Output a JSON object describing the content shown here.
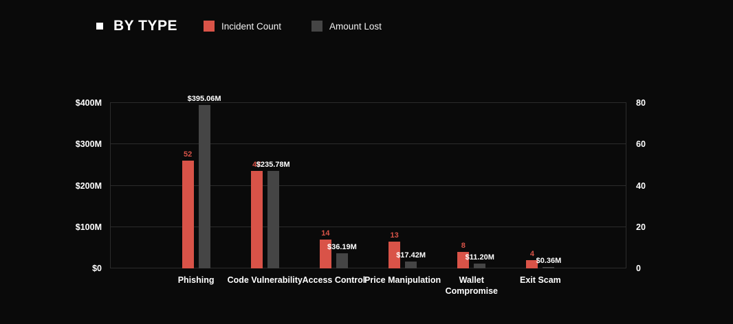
{
  "header": {
    "title": "BY TYPE",
    "legend": [
      {
        "label": "Incident Count",
        "color": "#d95348"
      },
      {
        "label": "Amount Lost",
        "color": "#454545"
      }
    ]
  },
  "chart_data": {
    "type": "bar",
    "title": "BY TYPE",
    "categories": [
      "Phishing",
      "Code Vulnerability",
      "Access Control",
      "Price Manipulation",
      "Wallet Compromise",
      "Exit Scam"
    ],
    "series": [
      {
        "name": "Incident Count",
        "axis": "right",
        "color": "#d95348",
        "label_color": "#d95348",
        "values": [
          52,
          47,
          14,
          13,
          8,
          4
        ],
        "labels": [
          "52",
          "47",
          "14",
          "13",
          "8",
          "4"
        ]
      },
      {
        "name": "Amount Lost",
        "axis": "left",
        "color": "#454545",
        "label_color": "#ffffff",
        "values": [
          395.06,
          235.78,
          36.19,
          17.42,
          11.2,
          0.36
        ],
        "labels": [
          "$395.06M",
          "$235.78M",
          "$36.19M",
          "$17.42M",
          "$11.20M",
          "$0.36M"
        ]
      }
    ],
    "left_axis": {
      "label": "",
      "ticks": [
        "$0",
        "$100M",
        "$200M",
        "$300M",
        "$400M"
      ],
      "min": 0,
      "max": 400
    },
    "right_axis": {
      "label": "",
      "ticks": [
        "0",
        "20",
        "40",
        "60",
        "80"
      ],
      "min": 0,
      "max": 80
    },
    "grid": true,
    "legend_position": "top",
    "background": "#0a0a0a"
  }
}
